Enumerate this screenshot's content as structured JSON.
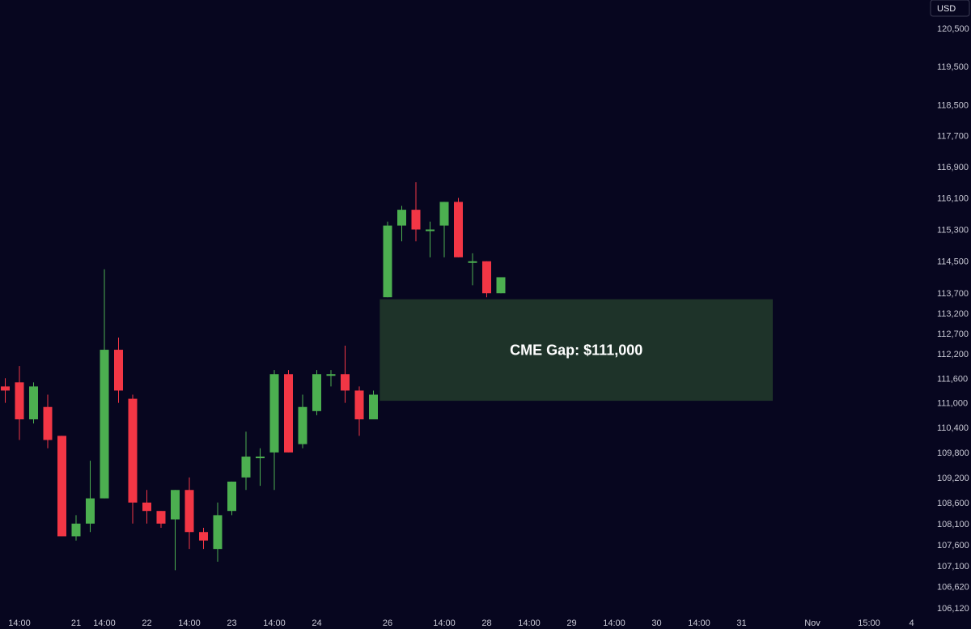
{
  "chart_data": {
    "type": "candlestick",
    "currency": "USD",
    "colors": {
      "background": "#07061f",
      "up": "#4caf50",
      "down": "#f23645",
      "gap_fill": "#1e3329",
      "axis_text": "#c8c8d4"
    },
    "y_axis": {
      "scale": "log",
      "ylim": [
        105950,
        121250
      ],
      "ticks": [
        106120,
        106620,
        107100,
        107600,
        108100,
        108600,
        109200,
        109800,
        110400,
        111000,
        111600,
        112200,
        112700,
        113200,
        113700,
        114500,
        115300,
        116100,
        116900,
        117700,
        118500,
        119500,
        120500
      ],
      "tick_labels": [
        "106,120",
        "106,620",
        "107,100",
        "107,600",
        "108,100",
        "108,600",
        "109,200",
        "109,800",
        "110,400",
        "111,000",
        "111,600",
        "112,200",
        "112,700",
        "113,200",
        "113,700",
        "114,500",
        "115,300",
        "116,100",
        "116,900",
        "117,700",
        "118,500",
        "119,500",
        "120,500"
      ]
    },
    "x_axis": {
      "ticks": [
        {
          "label": "14:00",
          "t": 1
        },
        {
          "label": "21",
          "t": 5
        },
        {
          "label": "14:00",
          "t": 7
        },
        {
          "label": "22",
          "t": 10
        },
        {
          "label": "14:00",
          "t": 13
        },
        {
          "label": "23",
          "t": 16
        },
        {
          "label": "14:00",
          "t": 19
        },
        {
          "label": "24",
          "t": 22
        },
        {
          "label": "26",
          "t": 27
        },
        {
          "label": "14:00",
          "t": 31
        },
        {
          "label": "28",
          "t": 34
        },
        {
          "label": "14:00",
          "t": 37
        },
        {
          "label": "29",
          "t": 40
        },
        {
          "label": "14:00",
          "t": 43
        },
        {
          "label": "30",
          "t": 46
        },
        {
          "label": "14:00",
          "t": 49
        },
        {
          "label": "31",
          "t": 52
        },
        {
          "label": "Nov",
          "t": 57
        },
        {
          "label": "15:00",
          "t": 61
        },
        {
          "label": "4",
          "t": 64
        }
      ]
    },
    "candles": [
      {
        "t": 0,
        "o": 111400,
        "h": 111600,
        "l": 111000,
        "c": 111300
      },
      {
        "t": 1,
        "o": 111500,
        "h": 111900,
        "l": 110100,
        "c": 110600
      },
      {
        "t": 2,
        "o": 110600,
        "h": 111500,
        "l": 110500,
        "c": 111400
      },
      {
        "t": 3,
        "o": 110900,
        "h": 111200,
        "l": 109900,
        "c": 110100
      },
      {
        "t": 4,
        "o": 110200,
        "h": 110200,
        "l": 107800,
        "c": 107800
      },
      {
        "t": 5,
        "o": 107800,
        "h": 108300,
        "l": 107700,
        "c": 108100
      },
      {
        "t": 6,
        "o": 108100,
        "h": 109600,
        "l": 107900,
        "c": 108700
      },
      {
        "t": 7,
        "o": 108700,
        "h": 114300,
        "l": 108700,
        "c": 112300
      },
      {
        "t": 8,
        "o": 112300,
        "h": 112600,
        "l": 111000,
        "c": 111300
      },
      {
        "t": 9,
        "o": 111100,
        "h": 111200,
        "l": 108100,
        "c": 108600
      },
      {
        "t": 10,
        "o": 108600,
        "h": 108900,
        "l": 108100,
        "c": 108400
      },
      {
        "t": 11,
        "o": 108400,
        "h": 108400,
        "l": 108000,
        "c": 108100
      },
      {
        "t": 12,
        "o": 108200,
        "h": 108900,
        "l": 107000,
        "c": 108900
      },
      {
        "t": 13,
        "o": 108900,
        "h": 109200,
        "l": 107500,
        "c": 107900
      },
      {
        "t": 14,
        "o": 107900,
        "h": 108000,
        "l": 107500,
        "c": 107700
      },
      {
        "t": 15,
        "o": 107500,
        "h": 108600,
        "l": 107200,
        "c": 108300
      },
      {
        "t": 16,
        "o": 108400,
        "h": 109100,
        "l": 108300,
        "c": 109100
      },
      {
        "t": 17,
        "o": 109200,
        "h": 110300,
        "l": 108900,
        "c": 109700
      },
      {
        "t": 18,
        "o": 109700,
        "h": 109900,
        "l": 109000,
        "c": 109700
      },
      {
        "t": 19,
        "o": 109800,
        "h": 111800,
        "l": 108900,
        "c": 111700
      },
      {
        "t": 20,
        "o": 111700,
        "h": 111800,
        "l": 109800,
        "c": 109800
      },
      {
        "t": 21,
        "o": 110000,
        "h": 111200,
        "l": 109900,
        "c": 110900
      },
      {
        "t": 22,
        "o": 110800,
        "h": 111800,
        "l": 110700,
        "c": 111700
      },
      {
        "t": 23,
        "o": 111700,
        "h": 111800,
        "l": 111400,
        "c": 111700
      },
      {
        "t": 24,
        "o": 111700,
        "h": 112400,
        "l": 111000,
        "c": 111300
      },
      {
        "t": 25,
        "o": 111300,
        "h": 111400,
        "l": 110200,
        "c": 110600
      },
      {
        "t": 26,
        "o": 110600,
        "h": 111300,
        "l": 110600,
        "c": 111200
      },
      {
        "t": 27,
        "o": 113600,
        "h": 115500,
        "l": 113600,
        "c": 115400
      },
      {
        "t": 28,
        "o": 115400,
        "h": 115900,
        "l": 115000,
        "c": 115800
      },
      {
        "t": 29,
        "o": 115800,
        "h": 116500,
        "l": 115000,
        "c": 115300
      },
      {
        "t": 30,
        "o": 115300,
        "h": 115500,
        "l": 114600,
        "c": 115300
      },
      {
        "t": 31,
        "o": 115400,
        "h": 116000,
        "l": 114600,
        "c": 116000
      },
      {
        "t": 32,
        "o": 116000,
        "h": 116100,
        "l": 114600,
        "c": 114600
      },
      {
        "t": 33,
        "o": 114500,
        "h": 114700,
        "l": 113900,
        "c": 114500
      },
      {
        "t": 34,
        "o": 114500,
        "h": 114500,
        "l": 113600,
        "c": 113700
      },
      {
        "t": 35,
        "o": 113700,
        "h": 114100,
        "l": 113700,
        "c": 114100
      }
    ],
    "annotations": [
      {
        "type": "rect",
        "label": "CME Gap: $111,000",
        "t_start": 26.45,
        "t_end": 54.2,
        "y_top": 113550,
        "y_bottom": 111050
      }
    ]
  }
}
